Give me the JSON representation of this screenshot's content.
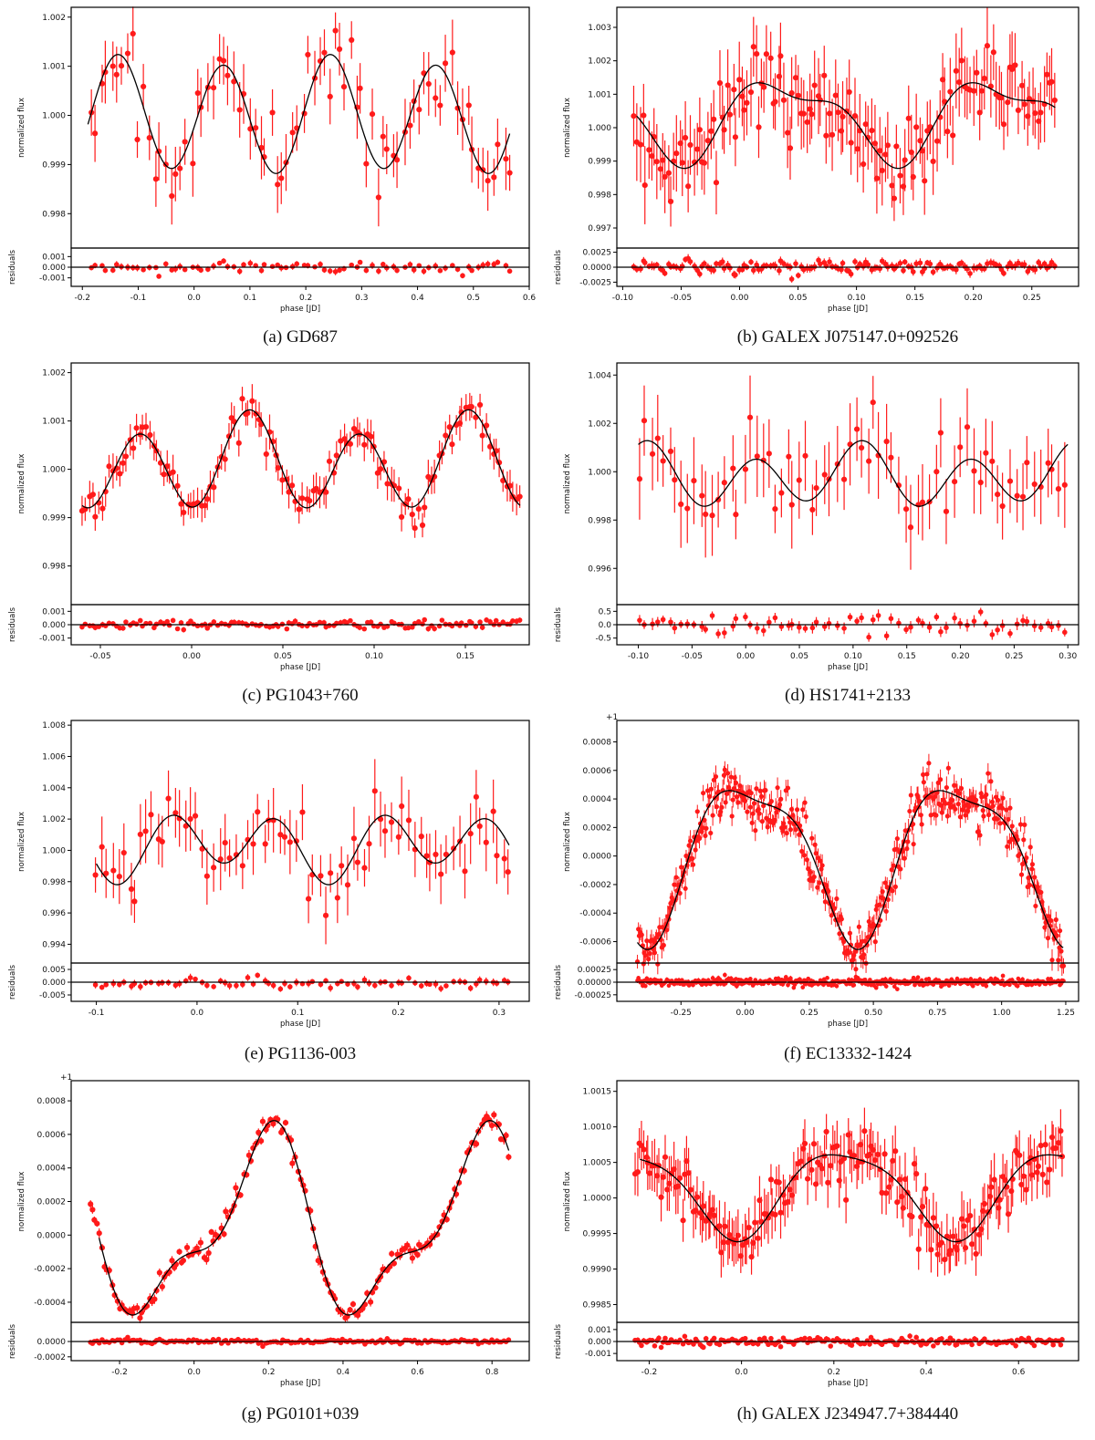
{
  "figure": {
    "common_labels": {
      "xlabel": "phase [JD]",
      "ylabel_main": "normalized flux",
      "ylabel_res": "residuals"
    },
    "colors": {
      "data": "#ff1a1a",
      "model": "#000000",
      "frame": "#000000"
    }
  },
  "chart_data": [
    {
      "type": "scatter",
      "caption": "(a) GD687",
      "star": "GD687",
      "xlim": [
        -0.22,
        0.6
      ],
      "ylim": [
        0.9973,
        1.0022
      ],
      "res_ylim": [
        -0.0018,
        0.0018
      ],
      "xticks": [
        -0.2,
        -0.1,
        0.0,
        0.1,
        0.2,
        0.3,
        0.4,
        0.5,
        0.6
      ],
      "xtick_labels": [
        "-0.2",
        "-0.1",
        "0.0",
        "0.1",
        "0.2",
        "0.3",
        "0.4",
        "0.5",
        "0.6"
      ],
      "yticks": [
        0.998,
        0.999,
        1.0,
        1.001,
        1.002
      ],
      "ytick_labels": [
        "0.998",
        "0.999",
        "1.000",
        "1.001",
        "1.002"
      ],
      "res_yticks": [
        -0.001,
        0.0,
        0.001
      ],
      "res_ytick_labels": [
        "-0.001",
        "0.000",
        "0.001"
      ],
      "offset_label": "",
      "model": {
        "offset": 1.0,
        "a1": 0.00012,
        "a2": 0.00113,
        "p1": 0.38,
        "p2": 0.19,
        "ph1": 0.71,
        "ph2": 0.28,
        "x0": -0.19,
        "x1": 0.565
      },
      "samples": {
        "n": 80,
        "x0": -0.185,
        "x1": 0.565,
        "noise": 0.00042,
        "err": 0.00052,
        "res_err": 0.00026
      }
    },
    {
      "type": "scatter",
      "caption": "(b) GALEX J075147.0+092526",
      "star": "GALEX J075147.0+092526",
      "xlim": [
        -0.105,
        0.29
      ],
      "ylim": [
        0.9964,
        1.0036
      ],
      "res_ylim": [
        -0.0032,
        0.0032
      ],
      "xticks": [
        -0.1,
        -0.05,
        0.0,
        0.05,
        0.1,
        0.15,
        0.2,
        0.25
      ],
      "xtick_labels": [
        "-0.10",
        "-0.05",
        "0.00",
        "0.05",
        "0.10",
        "0.15",
        "0.20",
        "0.25"
      ],
      "yticks": [
        0.997,
        0.998,
        0.999,
        1.0,
        1.001,
        1.002,
        1.003
      ],
      "ytick_labels": [
        "0.997",
        "0.998",
        "0.999",
        "1.000",
        "1.001",
        "1.002",
        "1.003"
      ],
      "res_yticks": [
        -0.0025,
        0.0,
        0.0025
      ],
      "res_ytick_labels": [
        "-0.0025",
        "0.0000",
        "0.0025"
      ],
      "offset_label": "",
      "model": {
        "offset": 1.0003,
        "a1": 0.0011,
        "a2": 0.00045,
        "p1": 0.183,
        "p2": 0.0915,
        "ph1": 0.21,
        "ph2": 0.02,
        "x0": -0.088,
        "x1": 0.27
      },
      "samples": {
        "n": 150,
        "x0": -0.09,
        "x1": 0.27,
        "noise": 0.0006,
        "err": 0.0009,
        "res_err": 0.0006
      }
    },
    {
      "type": "scatter",
      "caption": "(c) PG1043+760",
      "star": "PG1043+760",
      "xlim": [
        -0.066,
        0.185
      ],
      "ylim": [
        0.9972,
        1.0022
      ],
      "res_ylim": [
        -0.0015,
        0.0015
      ],
      "xticks": [
        -0.05,
        0.0,
        0.05,
        0.1,
        0.15
      ],
      "xtick_labels": [
        "-0.05",
        "0.00",
        "0.05",
        "0.10",
        "0.15"
      ],
      "yticks": [
        0.998,
        0.999,
        1.0,
        1.001,
        1.002
      ],
      "ytick_labels": [
        "0.998",
        "0.999",
        "1.000",
        "1.001",
        "1.002"
      ],
      "res_yticks": [
        -0.001,
        0.0,
        0.001
      ],
      "res_ytick_labels": [
        "-0.001",
        "0.000",
        "0.001"
      ],
      "offset_label": "",
      "model": {
        "offset": 1.0001,
        "a1": 0.00025,
        "a2": 0.00088,
        "p1": 0.12,
        "p2": 0.06,
        "ph1": 0.26,
        "ph2": 0.53,
        "x0": -0.06,
        "x1": 0.18
      },
      "samples": {
        "n": 130,
        "x0": -0.06,
        "x1": 0.18,
        "noise": 0.00018,
        "err": 0.00028,
        "res_err": 0.00017
      }
    },
    {
      "type": "scatter",
      "caption": "(d) HS1741+2133",
      "star": "HS1741+2133",
      "xlim": [
        -0.12,
        0.31
      ],
      "ylim": [
        0.9945,
        1.0045
      ],
      "res_ylim": [
        -0.75,
        0.75
      ],
      "xticks": [
        -0.1,
        -0.05,
        0.0,
        0.05,
        0.1,
        0.15,
        0.2,
        0.25,
        0.3
      ],
      "xtick_labels": [
        "-0.10",
        "-0.05",
        "0.00",
        "0.05",
        "0.10",
        "0.15",
        "0.20",
        "0.25",
        "0.30"
      ],
      "yticks": [
        0.996,
        0.998,
        1.0,
        1.002,
        1.004
      ],
      "ytick_labels": [
        "0.996",
        "0.998",
        "1.000",
        "1.002",
        "1.004"
      ],
      "res_yticks": [
        -0.5,
        0.0,
        0.5
      ],
      "res_ytick_labels": [
        "-0.5",
        "0.0",
        "0.5"
      ],
      "offset_label": "",
      "model": {
        "offset": 0.9998,
        "a1": 0.0004,
        "a2": 0.0011,
        "p1": 0.2,
        "p2": 0.1,
        "ph1": 0.5,
        "ph2": 0.09,
        "x0": -0.1,
        "x1": 0.3
      },
      "samples": {
        "n": 70,
        "x0": -0.1,
        "x1": 0.298,
        "noise": 0.0009,
        "err": 0.0014,
        "res_err": 0.18
      }
    },
    {
      "type": "scatter",
      "caption": "(e) PG1136-003",
      "star": "PG1136-003",
      "xlim": [
        -0.125,
        0.33
      ],
      "ylim": [
        0.9928,
        1.0083
      ],
      "res_ylim": [
        -0.0075,
        0.0075
      ],
      "xticks": [
        -0.1,
        0.0,
        0.1,
        0.2,
        0.3
      ],
      "xtick_labels": [
        "-0.1",
        "0.0",
        "0.1",
        "0.2",
        "0.3"
      ],
      "yticks": [
        0.994,
        0.996,
        0.998,
        1.0,
        1.002,
        1.004,
        1.006,
        1.008
      ],
      "ytick_labels": [
        "0.994",
        "0.996",
        "0.998",
        "1.000",
        "1.002",
        "1.004",
        "1.006",
        "1.008"
      ],
      "res_yticks": [
        -0.005,
        0.0,
        0.005
      ],
      "res_ytick_labels": [
        "-0.005",
        "0.000",
        "0.005"
      ],
      "offset_label": "",
      "model": {
        "offset": 1.0003,
        "a1": 0.0007,
        "a2": 0.0018,
        "p1": 0.21,
        "p2": 0.105,
        "ph1": 0.1,
        "ph2": 0.75,
        "x0": -0.1,
        "x1": 0.31
      },
      "samples": {
        "n": 75,
        "x0": -0.1,
        "x1": 0.31,
        "noise": 0.0011,
        "err": 0.0016,
        "res_err": 0.0012
      }
    },
    {
      "type": "scatter",
      "caption": "(f) EC13332-1424",
      "star": "EC13332-1424",
      "xlim": [
        -0.5,
        1.3
      ],
      "ylim": [
        -0.00075,
        0.00095
      ],
      "res_ylim": [
        -0.00038,
        0.00038
      ],
      "xticks": [
        -0.25,
        0.0,
        0.25,
        0.5,
        0.75,
        1.0,
        1.25
      ],
      "xtick_labels": [
        "-0.25",
        "0.00",
        "0.25",
        "0.50",
        "0.75",
        "1.00",
        "1.25"
      ],
      "yticks": [
        -0.0006,
        -0.0004,
        -0.0002,
        0.0,
        0.0002,
        0.0004,
        0.0006,
        0.0008
      ],
      "ytick_labels": [
        "-0.0006",
        "-0.0004",
        "-0.0002",
        "0.0000",
        "0.0002",
        "0.0004",
        "0.0006",
        "0.0008"
      ],
      "res_yticks": [
        -0.00025,
        0.0,
        0.00025
      ],
      "res_ytick_labels": [
        "-0.00025",
        "0.00000",
        "0.00025"
      ],
      "offset_label": "+1",
      "model": {
        "offset": 2e-05,
        "a1": 0.00015,
        "a2": 0.00053,
        "p1": 0.41,
        "p2": 0.82,
        "ph1": 0.6,
        "ph2": 0.02,
        "x0": -0.42,
        "x1": 1.24
      },
      "samples": {
        "n": 420,
        "x0": -0.42,
        "x1": 1.24,
        "noise": 9e-05,
        "err": 6e-05,
        "res_err": 4e-05
      }
    },
    {
      "type": "scatter",
      "caption": "(g) PG0101+039",
      "star": "PG0101+039",
      "xlim": [
        -0.33,
        0.9
      ],
      "ylim": [
        -0.00052,
        0.00092
      ],
      "res_ylim": [
        -0.00025,
        0.00025
      ],
      "xticks": [
        -0.2,
        0.0,
        0.2,
        0.4,
        0.6,
        0.8
      ],
      "xtick_labels": [
        "-0.2",
        "0.0",
        "0.2",
        "0.4",
        "0.6",
        "0.8"
      ],
      "yticks": [
        -0.0004,
        -0.0002,
        0.0,
        0.0002,
        0.0004,
        0.0006,
        0.0008
      ],
      "ytick_labels": [
        "-0.0004",
        "-0.0002",
        "0.0000",
        "0.0002",
        "0.0004",
        "0.0006",
        "0.0008"
      ],
      "res_yticks": [
        -0.0002,
        0.0
      ],
      "res_ytick_labels": [
        "-0.0002",
        "0.0000"
      ],
      "offset_label": "+1",
      "model": {
        "offset": 4e-05,
        "a1": 0.0002,
        "a2": 0.00048,
        "p1": 0.29,
        "p2": 0.58,
        "ph1": 0.8,
        "ph2": 0.32,
        "x0": -0.255,
        "x1": 0.845
      },
      "samples": {
        "n": 170,
        "x0": -0.28,
        "x1": 0.845,
        "noise": 3e-05,
        "err": 2.5e-05,
        "res_err": 1.5e-05
      }
    },
    {
      "type": "scatter",
      "caption": "(h) GALEX J234947.7+384440",
      "star": "GALEX J234947.7+384440",
      "xlim": [
        -0.27,
        0.73
      ],
      "ylim": [
        0.99825,
        1.00165
      ],
      "res_ylim": [
        -0.0016,
        0.0016
      ],
      "xticks": [
        -0.2,
        0.0,
        0.2,
        0.4,
        0.6
      ],
      "xtick_labels": [
        "-0.2",
        "0.0",
        "0.2",
        "0.4",
        "0.6"
      ],
      "yticks": [
        0.9985,
        0.999,
        0.9995,
        1.0,
        1.0005,
        1.001,
        1.0015
      ],
      "ytick_labels": [
        "0.9985",
        "0.9990",
        "0.9995",
        "1.0000",
        "1.0005",
        "1.0010",
        "1.0015"
      ],
      "res_yticks": [
        -0.001,
        0.0,
        0.001
      ],
      "res_ytick_labels": [
        "-0.001",
        "0.000",
        "0.001"
      ],
      "offset_label": "",
      "model": {
        "offset": 1.0001,
        "a1": 0.00012,
        "a2": 0.0006,
        "p1": 0.236,
        "p2": 0.472,
        "ph1": 0.5,
        "ph2": 0.47,
        "x0": -0.22,
        "x1": 0.695
      },
      "samples": {
        "n": 200,
        "x0": -0.23,
        "x1": 0.695,
        "noise": 0.0002,
        "err": 0.0003,
        "res_err": 0.00018
      }
    }
  ]
}
